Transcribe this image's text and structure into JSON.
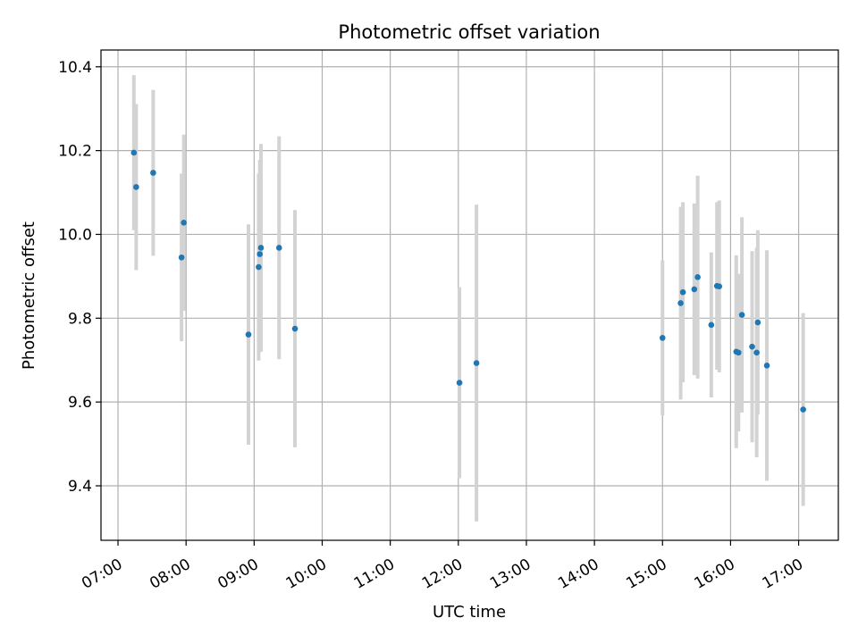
{
  "chart_data": {
    "type": "scatter",
    "title": "Photometric offset variation",
    "xlabel": "UTC time",
    "ylabel": "Photometric offset",
    "grid": true,
    "xlim": [
      "06:45",
      "17:35"
    ],
    "ylim": [
      9.27,
      10.44
    ],
    "x_ticks": [
      "07:00",
      "08:00",
      "09:00",
      "10:00",
      "11:00",
      "12:00",
      "13:00",
      "14:00",
      "15:00",
      "16:00",
      "17:00"
    ],
    "y_ticks": [
      "9.4",
      "9.6",
      "9.8",
      "10.0",
      "10.2",
      "10.4"
    ],
    "marker_color": "#1f77b4",
    "errorbar_color": "#d3d3d3",
    "points": [
      {
        "x": "07:14",
        "y": 10.195,
        "err": 0.185
      },
      {
        "x": "07:16",
        "y": 10.113,
        "err": 0.198
      },
      {
        "x": "07:31",
        "y": 10.147,
        "err": 0.198
      },
      {
        "x": "07:56",
        "y": 9.945,
        "err": 0.2
      },
      {
        "x": "07:58",
        "y": 10.028,
        "err": 0.21
      },
      {
        "x": "08:55",
        "y": 9.761,
        "err": 0.263
      },
      {
        "x": "09:04",
        "y": 9.922,
        "err": 0.223
      },
      {
        "x": "09:05",
        "y": 9.953,
        "err": 0.225
      },
      {
        "x": "09:06",
        "y": 9.968,
        "err": 0.248
      },
      {
        "x": "09:22",
        "y": 9.968,
        "err": 0.266
      },
      {
        "x": "09:36",
        "y": 9.775,
        "err": 0.283
      },
      {
        "x": "12:01",
        "y": 9.646,
        "err": 0.228
      },
      {
        "x": "12:16",
        "y": 9.693,
        "err": 0.378
      },
      {
        "x": "15:00",
        "y": 9.753,
        "err": 0.185
      },
      {
        "x": "15:16",
        "y": 9.836,
        "err": 0.23
      },
      {
        "x": "15:18",
        "y": 9.862,
        "err": 0.215
      },
      {
        "x": "15:28",
        "y": 9.869,
        "err": 0.205
      },
      {
        "x": "15:31",
        "y": 9.898,
        "err": 0.242
      },
      {
        "x": "15:43",
        "y": 9.784,
        "err": 0.173
      },
      {
        "x": "15:48",
        "y": 9.877,
        "err": 0.2
      },
      {
        "x": "15:50",
        "y": 9.876,
        "err": 0.205
      },
      {
        "x": "16:05",
        "y": 9.72,
        "err": 0.23
      },
      {
        "x": "16:07",
        "y": 9.718,
        "err": 0.188
      },
      {
        "x": "16:10",
        "y": 9.808,
        "err": 0.233
      },
      {
        "x": "16:19",
        "y": 9.732,
        "err": 0.228
      },
      {
        "x": "16:23",
        "y": 9.718,
        "err": 0.25
      },
      {
        "x": "16:24",
        "y": 9.79,
        "err": 0.22
      },
      {
        "x": "16:32",
        "y": 9.687,
        "err": 0.275
      },
      {
        "x": "17:04",
        "y": 9.582,
        "err": 0.23
      }
    ]
  }
}
